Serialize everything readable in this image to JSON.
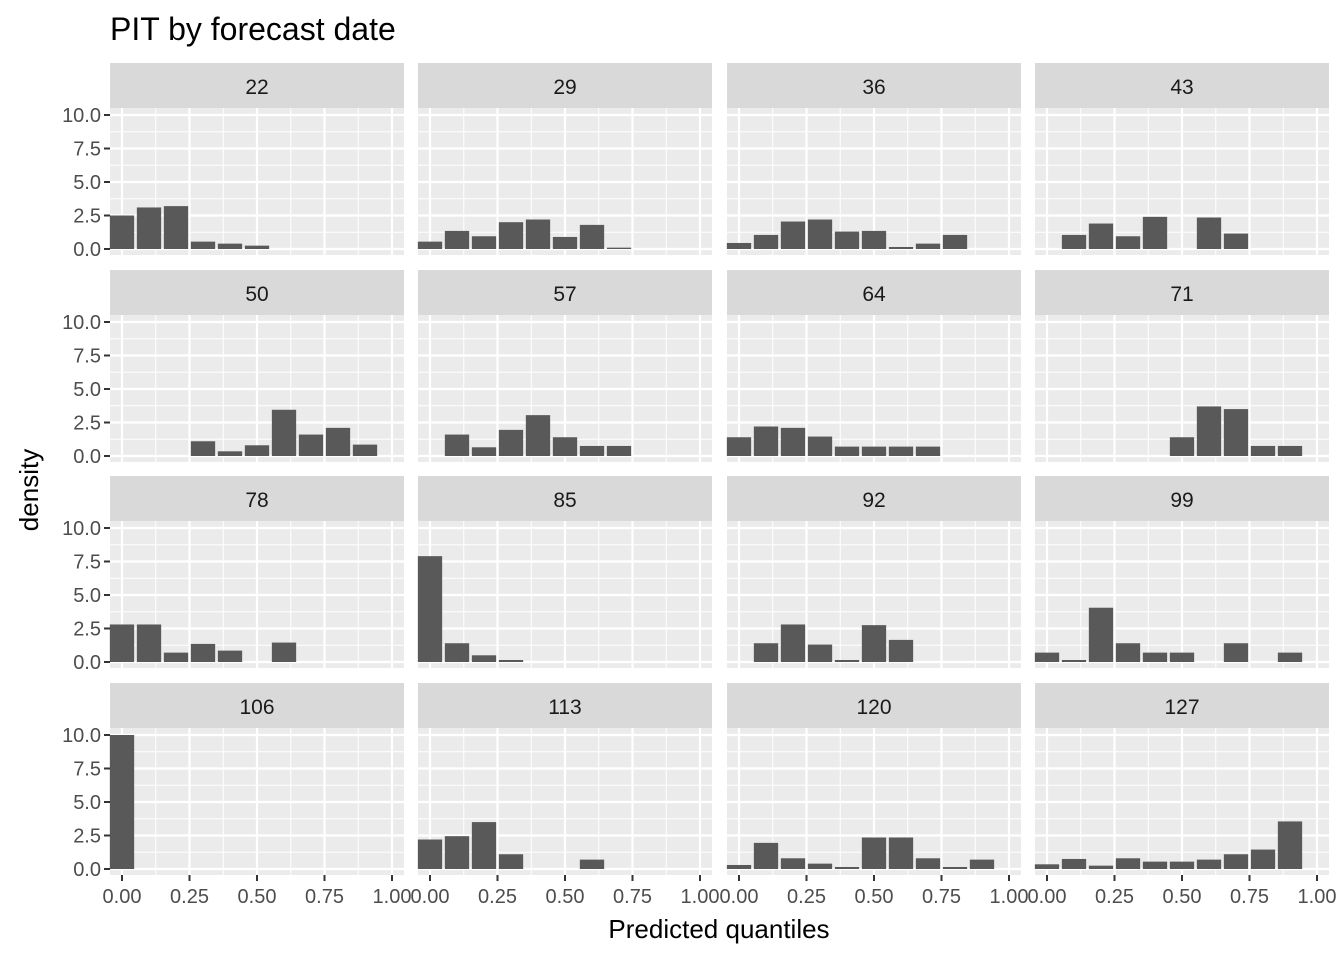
{
  "chart_data": {
    "type": "bar",
    "title": "PIT by forecast date",
    "xlabel": "Predicted quantiles",
    "ylabel": "density",
    "xlim": [
      0,
      1
    ],
    "ylim": [
      0,
      10
    ],
    "x_ticks": [
      "0.00",
      "0.25",
      "0.50",
      "0.75",
      "1.00"
    ],
    "y_ticks": [
      "0.0",
      "2.5",
      "5.0",
      "7.5",
      "10.0"
    ],
    "bin_centers": [
      0.0,
      0.1,
      0.2,
      0.3,
      0.4,
      0.5,
      0.6,
      0.7,
      0.8,
      0.9,
      1.0
    ],
    "bin_width": 0.09,
    "grid": true,
    "colors": {
      "bar": "#595959",
      "panel": "#ebebeb",
      "strip": "#d9d9d9",
      "grid": "#ffffff"
    },
    "facets": [
      {
        "label": "22",
        "values": [
          2.5,
          3.1,
          3.2,
          0.55,
          0.4,
          0.25,
          0,
          0,
          0,
          0,
          0
        ]
      },
      {
        "label": "29",
        "values": [
          0.55,
          1.35,
          0.95,
          2.0,
          2.2,
          0.9,
          1.8,
          0.1,
          0,
          0,
          0
        ]
      },
      {
        "label": "36",
        "values": [
          0.45,
          1.05,
          2.05,
          2.2,
          1.3,
          1.35,
          0.15,
          0.4,
          1.05,
          0,
          0
        ]
      },
      {
        "label": "43",
        "values": [
          0,
          1.05,
          1.9,
          0.95,
          2.4,
          0,
          2.35,
          1.15,
          0,
          0,
          0
        ]
      },
      {
        "label": "50",
        "values": [
          0,
          0,
          0,
          1.1,
          0.35,
          0.8,
          3.45,
          1.6,
          2.1,
          0.85,
          0
        ]
      },
      {
        "label": "57",
        "values": [
          0,
          1.6,
          0.65,
          1.95,
          3.05,
          1.4,
          0.75,
          0.75,
          0,
          0,
          0
        ]
      },
      {
        "label": "64",
        "values": [
          1.4,
          2.2,
          2.1,
          1.45,
          0.7,
          0.7,
          0.7,
          0.7,
          0,
          0,
          0
        ]
      },
      {
        "label": "71",
        "values": [
          0,
          0,
          0,
          0,
          0,
          1.4,
          3.7,
          3.5,
          0.75,
          0.75,
          0
        ]
      },
      {
        "label": "78",
        "values": [
          2.8,
          2.8,
          0.7,
          1.35,
          0.85,
          0,
          1.45,
          0,
          0,
          0,
          0
        ]
      },
      {
        "label": "85",
        "values": [
          7.9,
          1.4,
          0.5,
          0.15,
          0,
          0,
          0,
          0,
          0,
          0,
          0
        ]
      },
      {
        "label": "92",
        "values": [
          0,
          1.4,
          2.8,
          1.3,
          0.15,
          2.75,
          1.65,
          0,
          0,
          0,
          0
        ]
      },
      {
        "label": "99",
        "values": [
          0.7,
          0.15,
          4.05,
          1.4,
          0.7,
          0.7,
          0,
          1.4,
          0,
          0.7,
          0
        ]
      },
      {
        "label": "106",
        "values": [
          10.0,
          0,
          0,
          0,
          0,
          0,
          0,
          0,
          0,
          0,
          0
        ]
      },
      {
        "label": "113",
        "values": [
          2.2,
          2.45,
          3.5,
          1.1,
          0,
          0,
          0.7,
          0,
          0,
          0,
          0
        ]
      },
      {
        "label": "120",
        "values": [
          0.3,
          1.95,
          0.8,
          0.4,
          0.15,
          2.35,
          2.35,
          0.8,
          0.15,
          0.7,
          0
        ]
      },
      {
        "label": "127",
        "values": [
          0.35,
          0.75,
          0.25,
          0.8,
          0.55,
          0.55,
          0.7,
          1.1,
          1.45,
          3.55,
          0
        ]
      }
    ]
  }
}
